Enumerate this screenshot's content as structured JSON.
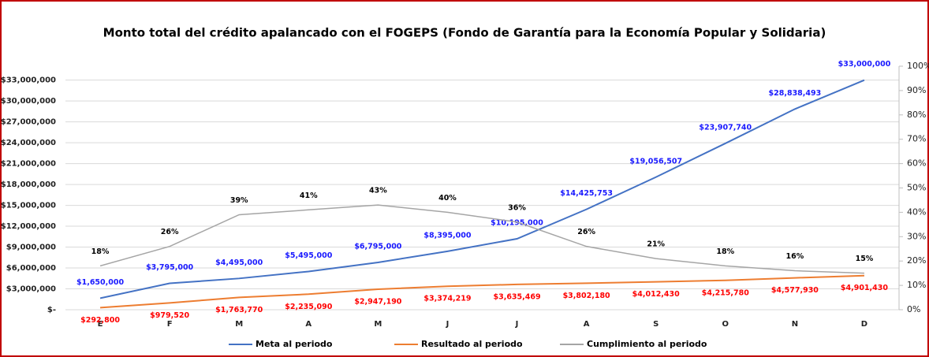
{
  "chart_data": {
    "type": "line",
    "title": "Monto total del crédito apalancado con el FOGEPS (Fondo de Garantía para la Economía Popular y Solidaria)",
    "categories": [
      "E",
      "F",
      "M",
      "A",
      "M",
      "J",
      "J",
      "A",
      "S",
      "O",
      "N",
      "D"
    ],
    "series": [
      {
        "name": "Meta al periodo",
        "color": "#4472c4",
        "label_color": "#1a1aff",
        "values": [
          1650000,
          3795000,
          4495000,
          5495000,
          6795000,
          8395000,
          10195000,
          14425753,
          19056507,
          23907740,
          28838493,
          33000000
        ],
        "value_labels": [
          "$1,650,000",
          "$3,795,000",
          "$4,495,000",
          "$5,495,000",
          "$6,795,000",
          "$8,395,000",
          "$10,195,000",
          "$14,425,753",
          "$19,056,507",
          "$23,907,740",
          "$28,838,493",
          "$33,000,000"
        ]
      },
      {
        "name": "Resultado al periodo",
        "color": "#ed7d31",
        "label_color": "#ff0000",
        "values": [
          292800,
          979520,
          1763770,
          2235090,
          2947190,
          3374219,
          3635469,
          3802180,
          4012430,
          4215780,
          4577930,
          4901430
        ],
        "value_labels": [
          "$292,800",
          "$979,520",
          "$1,763,770",
          "$2,235,090",
          "$2,947,190",
          "$3,374,219",
          "$3,635,469",
          "$3,802,180",
          "$4,012,430",
          "$4,215,780",
          "$4,577,930",
          "$4,901,430"
        ]
      },
      {
        "name": "Cumplimiento al periodo",
        "color": "#a5a5a5",
        "label_color": "#000000",
        "axis": "y2",
        "values": [
          18,
          26,
          39,
          41,
          43,
          40,
          36,
          26,
          21,
          18,
          16,
          15
        ],
        "value_labels": [
          "18%",
          "26%",
          "39%",
          "41%",
          "43%",
          "40%",
          "36%",
          "26%",
          "21%",
          "18%",
          "16%",
          "15%"
        ]
      }
    ],
    "ylim": [
      0,
      35000000
    ],
    "yticks": [
      {
        "value": 0,
        "label": "$-"
      },
      {
        "value": 3000000,
        "label": "$3,000,000"
      },
      {
        "value": 6000000,
        "label": "$6,000,000"
      },
      {
        "value": 9000000,
        "label": "$9,000,000"
      },
      {
        "value": 12000000,
        "label": "$12,000,000"
      },
      {
        "value": 15000000,
        "label": "$15,000,000"
      },
      {
        "value": 18000000,
        "label": "$18,000,000"
      },
      {
        "value": 21000000,
        "label": "$21,000,000"
      },
      {
        "value": 24000000,
        "label": "$24,000,000"
      },
      {
        "value": 27000000,
        "label": "$27,000,000"
      },
      {
        "value": 30000000,
        "label": "$30,000,000"
      },
      {
        "value": 33000000,
        "label": "$33,000,000"
      }
    ],
    "y2lim": [
      0,
      100
    ],
    "y2ticks": [
      {
        "value": 0,
        "label": "0%"
      },
      {
        "value": 10,
        "label": "10%"
      },
      {
        "value": 20,
        "label": "20%"
      },
      {
        "value": 30,
        "label": "30%"
      },
      {
        "value": 40,
        "label": "40%"
      },
      {
        "value": 50,
        "label": "50%"
      },
      {
        "value": 60,
        "label": "60%"
      },
      {
        "value": 70,
        "label": "70%"
      },
      {
        "value": 80,
        "label": "80%"
      },
      {
        "value": 90,
        "label": "90%"
      },
      {
        "value": 100,
        "label": "100%"
      }
    ],
    "grid": true,
    "legend": "bottom"
  }
}
